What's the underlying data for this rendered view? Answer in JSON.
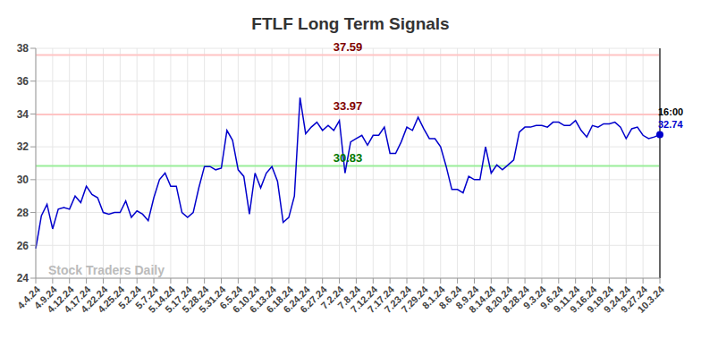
{
  "chart_data": {
    "type": "line",
    "title": "FTLF Long Term Signals",
    "categories": [
      "4.4.24",
      null,
      null,
      "4.9.24",
      null,
      null,
      "4.12.24",
      null,
      null,
      "4.17.24",
      null,
      null,
      "4.22.24",
      null,
      null,
      "4.25.24",
      null,
      null,
      "5.2.24",
      null,
      null,
      "5.7.24",
      null,
      null,
      "5.14.24",
      null,
      null,
      "5.17.24",
      null,
      null,
      "5.28.24",
      null,
      null,
      "5.31.24",
      null,
      null,
      "6.5.24",
      null,
      null,
      "6.10.24",
      null,
      null,
      "6.13.24",
      null,
      null,
      "6.18.24",
      null,
      null,
      "6.24.24",
      null,
      null,
      "6.27.24",
      null,
      null,
      "7.2.24",
      null,
      null,
      "7.8.24",
      null,
      null,
      "7.12.24",
      null,
      null,
      "7.17.24",
      null,
      null,
      "7.23.24",
      null,
      null,
      "7.29.24",
      null,
      null,
      "8.1.24",
      null,
      null,
      "8.6.24",
      null,
      null,
      "8.9.24",
      null,
      null,
      "8.14.24",
      null,
      null,
      "8.20.24",
      null,
      null,
      "8.28.24",
      null,
      null,
      "9.3.24",
      null,
      null,
      "9.6.24",
      null,
      null,
      "9.11.24",
      null,
      null,
      "9.16.24",
      null,
      null,
      "9.19.24",
      null,
      null,
      "9.24.24",
      null,
      null,
      "9.27.24",
      null,
      null,
      "10.3.24"
    ],
    "values": [
      25.8,
      27.8,
      28.5,
      27.0,
      28.2,
      28.3,
      28.2,
      29.0,
      28.6,
      29.6,
      29.1,
      28.9,
      28.0,
      27.9,
      28.0,
      28.0,
      28.7,
      27.7,
      28.1,
      27.9,
      27.5,
      28.9,
      30.0,
      30.4,
      29.6,
      29.6,
      28.0,
      27.7,
      28.0,
      29.5,
      30.8,
      30.8,
      30.6,
      30.7,
      33.0,
      32.4,
      30.6,
      30.2,
      27.9,
      30.4,
      29.5,
      30.4,
      30.8,
      29.9,
      27.4,
      27.7,
      29.0,
      35.0,
      32.8,
      33.2,
      33.5,
      33.0,
      33.3,
      33.0,
      33.6,
      30.4,
      32.3,
      32.5,
      32.7,
      32.1,
      32.7,
      32.7,
      33.2,
      31.6,
      31.6,
      32.3,
      33.2,
      33.0,
      33.8,
      33.1,
      32.5,
      32.5,
      32.0,
      30.8,
      29.4,
      29.4,
      29.2,
      30.2,
      30.0,
      30.0,
      32.0,
      30.4,
      30.9,
      30.6,
      30.9,
      31.2,
      32.9,
      33.2,
      33.2,
      33.3,
      33.3,
      33.2,
      33.5,
      33.5,
      33.3,
      33.3,
      33.6,
      33.0,
      32.6,
      33.3,
      33.2,
      33.4,
      33.4,
      33.5,
      33.2,
      32.5,
      33.1,
      33.2,
      32.7,
      32.5,
      32.6,
      32.74
    ],
    "color": "#0000cc",
    "ylim": [
      24,
      38
    ],
    "yticks": [
      24,
      26,
      28,
      30,
      32,
      34,
      36,
      38
    ],
    "grid": true,
    "marker": "last",
    "reference_lines": [
      {
        "value": 37.59,
        "color": "#ffc4c4",
        "label_color": "#800000"
      },
      {
        "value": 33.97,
        "color": "#ffc4c4",
        "label_color": "#800000"
      },
      {
        "value": 30.83,
        "color": "#99ee99",
        "label_color": "#007700"
      }
    ],
    "time_label": "16:00",
    "watermark": "Stock Traders Daily"
  }
}
